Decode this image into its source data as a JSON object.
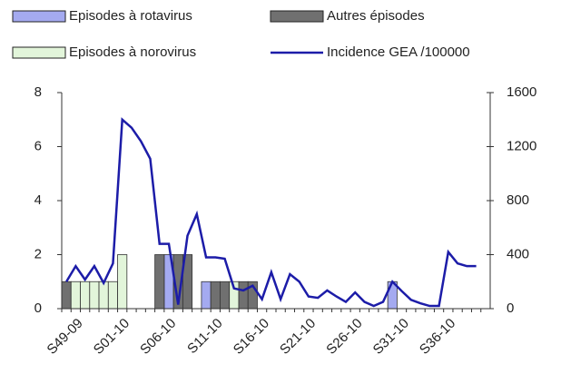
{
  "chart_data": {
    "type": "bar_line",
    "categories": [
      "S49-09",
      null,
      null,
      null,
      null,
      "S01-10",
      null,
      null,
      null,
      null,
      "S06-10",
      null,
      null,
      null,
      null,
      "S11-10",
      null,
      null,
      null,
      null,
      "S16-10",
      null,
      null,
      null,
      null,
      "S21-10",
      null,
      null,
      null,
      null,
      "S26-10",
      null,
      null,
      null,
      null,
      "S31-10",
      null,
      null,
      null,
      null,
      "S36-10",
      null,
      null,
      null,
      null,
      null
    ],
    "series": [
      {
        "name": "Episodes à rotavirus",
        "color": "#a4aaf0",
        "values": [
          0,
          0,
          0,
          0,
          0,
          0,
          0,
          0,
          0,
          0,
          0,
          2,
          0,
          0,
          0,
          1,
          0,
          0,
          0,
          0,
          0,
          0,
          0,
          0,
          0,
          0,
          0,
          0,
          0,
          0,
          0,
          0,
          0,
          0,
          0,
          1,
          0,
          0,
          0,
          0,
          0,
          0,
          0,
          0,
          0,
          0
        ]
      },
      {
        "name": "Autres épisodes",
        "color": "#707070",
        "values": [
          1,
          0,
          0,
          0,
          0,
          0,
          0,
          0,
          0,
          0,
          2,
          0,
          2,
          2,
          0,
          0,
          1,
          1,
          0,
          1,
          1,
          0,
          0,
          0,
          0,
          0,
          0,
          0,
          0,
          0,
          0,
          0,
          0,
          0,
          0,
          0,
          0,
          0,
          0,
          0,
          0,
          0,
          0,
          0,
          0,
          0
        ]
      },
      {
        "name": "Episodes à norovirus",
        "color": "#e2f5da",
        "values": [
          0,
          1,
          1,
          1,
          1,
          1,
          2,
          0,
          0,
          0,
          0,
          0,
          0,
          0,
          0,
          0,
          0,
          0,
          1,
          0,
          0,
          0,
          0,
          0,
          0,
          0,
          0,
          0,
          0,
          0,
          0,
          0,
          0,
          0,
          0,
          0,
          0,
          0,
          0,
          0,
          0,
          0,
          0,
          0,
          0,
          0
        ]
      },
      {
        "name": "Incidence GEA /100000",
        "color": "#1c1ca8",
        "axis": "y2",
        "values": [
          200,
          315,
          215,
          315,
          190,
          335,
          1400,
          1340,
          1240,
          1110,
          480,
          480,
          30,
          540,
          700,
          380,
          380,
          370,
          150,
          135,
          170,
          70,
          270,
          70,
          255,
          200,
          90,
          80,
          135,
          90,
          50,
          120,
          50,
          20,
          50,
          200,
          130,
          65,
          40,
          20,
          20,
          420,
          335,
          315,
          315,
          null
        ]
      }
    ],
    "ylim": [
      0,
      8
    ],
    "yticks": [
      0,
      2,
      4,
      6,
      8
    ],
    "y2lim": [
      0,
      1600
    ],
    "y2ticks": [
      0,
      400,
      800,
      1200,
      1600
    ]
  }
}
